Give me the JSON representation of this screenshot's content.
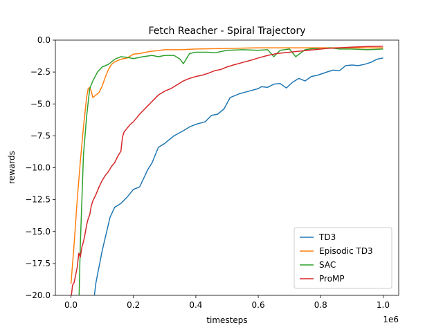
{
  "chart_data": {
    "type": "line",
    "title": "Fetch Reacher - Spiral Trajectory",
    "xlabel": "timesteps",
    "ylabel": "rewards",
    "x_offset_label": "1e6",
    "xlim": [
      -0.05,
      1.05
    ],
    "ylim": [
      -20.0,
      0.0
    ],
    "xticks": [
      0.0,
      0.2,
      0.4,
      0.6,
      0.8,
      1.0
    ],
    "xtick_labels": [
      "0.0",
      "0.2",
      "0.4",
      "0.6",
      "0.8",
      "1.0"
    ],
    "yticks": [
      0.0,
      -2.5,
      -5.0,
      -7.5,
      -10.0,
      -12.5,
      -15.0,
      -17.5,
      -20.0
    ],
    "ytick_labels": [
      "0.0",
      "−2.5",
      "−5.0",
      "−7.5",
      "−10.0",
      "−12.5",
      "−15.0",
      "−17.5",
      "−20.0"
    ],
    "grid": false,
    "legend_position": "lower-right",
    "series": [
      {
        "name": "TD3",
        "color": "#1f77b4",
        "points": [
          [
            0.07,
            -21.0
          ],
          [
            0.08,
            -19.0
          ],
          [
            0.1,
            -16.5
          ],
          [
            0.125,
            -13.9
          ],
          [
            0.14,
            -13.1
          ],
          [
            0.16,
            -12.8
          ],
          [
            0.18,
            -12.3
          ],
          [
            0.2,
            -11.7
          ],
          [
            0.22,
            -11.5
          ],
          [
            0.245,
            -10.2
          ],
          [
            0.26,
            -9.6
          ],
          [
            0.28,
            -8.4
          ],
          [
            0.3,
            -8.1
          ],
          [
            0.33,
            -7.5
          ],
          [
            0.36,
            -7.1
          ],
          [
            0.38,
            -6.8
          ],
          [
            0.4,
            -6.6
          ],
          [
            0.43,
            -6.4
          ],
          [
            0.45,
            -5.9
          ],
          [
            0.47,
            -5.8
          ],
          [
            0.49,
            -5.4
          ],
          [
            0.51,
            -4.5
          ],
          [
            0.54,
            -4.2
          ],
          [
            0.57,
            -4.0
          ],
          [
            0.6,
            -3.8
          ],
          [
            0.61,
            -3.65
          ],
          [
            0.63,
            -3.7
          ],
          [
            0.65,
            -3.45
          ],
          [
            0.67,
            -3.4
          ],
          [
            0.69,
            -3.75
          ],
          [
            0.71,
            -3.3
          ],
          [
            0.73,
            -3.0
          ],
          [
            0.75,
            -3.2
          ],
          [
            0.77,
            -2.85
          ],
          [
            0.79,
            -2.75
          ],
          [
            0.82,
            -2.5
          ],
          [
            0.84,
            -2.35
          ],
          [
            0.86,
            -2.4
          ],
          [
            0.88,
            -2.0
          ],
          [
            0.9,
            -1.95
          ],
          [
            0.92,
            -2.0
          ],
          [
            0.94,
            -1.9
          ],
          [
            0.96,
            -1.75
          ],
          [
            0.98,
            -1.5
          ],
          [
            1.0,
            -1.4
          ]
        ]
      },
      {
        "name": "Episodic TD3",
        "color": "#ff7f0e",
        "points": [
          [
            0.0,
            -19.1
          ],
          [
            0.01,
            -16.0
          ],
          [
            0.02,
            -12.5
          ],
          [
            0.03,
            -9.5
          ],
          [
            0.04,
            -6.8
          ],
          [
            0.05,
            -4.5
          ],
          [
            0.055,
            -3.8
          ],
          [
            0.06,
            -3.7
          ],
          [
            0.065,
            -4.0
          ],
          [
            0.07,
            -4.5
          ],
          [
            0.08,
            -4.3
          ],
          [
            0.09,
            -4.1
          ],
          [
            0.1,
            -3.6
          ],
          [
            0.11,
            -2.9
          ],
          [
            0.12,
            -2.3
          ],
          [
            0.13,
            -1.9
          ],
          [
            0.14,
            -1.7
          ],
          [
            0.16,
            -1.5
          ],
          [
            0.18,
            -1.4
          ],
          [
            0.2,
            -1.1
          ],
          [
            0.22,
            -1.05
          ],
          [
            0.25,
            -0.9
          ],
          [
            0.3,
            -0.75
          ],
          [
            0.35,
            -0.75
          ],
          [
            0.4,
            -0.7
          ],
          [
            0.5,
            -0.65
          ],
          [
            0.6,
            -0.6
          ],
          [
            0.7,
            -0.6
          ],
          [
            0.8,
            -0.6
          ],
          [
            0.9,
            -0.6
          ],
          [
            1.0,
            -0.6
          ]
        ]
      },
      {
        "name": "SAC",
        "color": "#2ca02c",
        "points": [
          [
            0.025,
            -21.0
          ],
          [
            0.03,
            -16.0
          ],
          [
            0.04,
            -9.0
          ],
          [
            0.05,
            -6.0
          ],
          [
            0.06,
            -3.8
          ],
          [
            0.07,
            -3.2
          ],
          [
            0.085,
            -2.5
          ],
          [
            0.1,
            -2.1
          ],
          [
            0.12,
            -1.9
          ],
          [
            0.14,
            -1.5
          ],
          [
            0.16,
            -1.3
          ],
          [
            0.18,
            -1.35
          ],
          [
            0.2,
            -1.45
          ],
          [
            0.23,
            -1.3
          ],
          [
            0.26,
            -1.2
          ],
          [
            0.28,
            -1.3
          ],
          [
            0.3,
            -1.2
          ],
          [
            0.33,
            -1.2
          ],
          [
            0.35,
            -1.5
          ],
          [
            0.36,
            -1.85
          ],
          [
            0.38,
            -1.05
          ],
          [
            0.4,
            -0.95
          ],
          [
            0.44,
            -0.95
          ],
          [
            0.46,
            -1.0
          ],
          [
            0.5,
            -0.8
          ],
          [
            0.55,
            -0.75
          ],
          [
            0.6,
            -0.8
          ],
          [
            0.63,
            -0.75
          ],
          [
            0.65,
            -1.3
          ],
          [
            0.67,
            -0.8
          ],
          [
            0.7,
            -0.7
          ],
          [
            0.72,
            -1.3
          ],
          [
            0.75,
            -0.75
          ],
          [
            0.78,
            -0.65
          ],
          [
            0.8,
            -0.7
          ],
          [
            0.83,
            -0.6
          ],
          [
            0.86,
            -0.7
          ],
          [
            0.9,
            -0.7
          ],
          [
            0.95,
            -0.75
          ],
          [
            1.0,
            -0.7
          ]
        ]
      },
      {
        "name": "ProMP",
        "color": "#d62728",
        "points": [
          [
            0.0,
            -20.3
          ],
          [
            0.005,
            -19.2
          ],
          [
            0.01,
            -19.0
          ],
          [
            0.015,
            -18.4
          ],
          [
            0.02,
            -17.8
          ],
          [
            0.025,
            -16.7
          ],
          [
            0.03,
            -17.0
          ],
          [
            0.035,
            -16.2
          ],
          [
            0.04,
            -15.8
          ],
          [
            0.045,
            -15.2
          ],
          [
            0.05,
            -14.5
          ],
          [
            0.055,
            -14.0
          ],
          [
            0.06,
            -13.7
          ],
          [
            0.065,
            -13.0
          ],
          [
            0.07,
            -12.6
          ],
          [
            0.08,
            -12.1
          ],
          [
            0.09,
            -11.5
          ],
          [
            0.1,
            -11.0
          ],
          [
            0.11,
            -10.6
          ],
          [
            0.12,
            -10.3
          ],
          [
            0.13,
            -9.9
          ],
          [
            0.14,
            -9.6
          ],
          [
            0.15,
            -9.1
          ],
          [
            0.16,
            -8.7
          ],
          [
            0.165,
            -7.6
          ],
          [
            0.17,
            -7.2
          ],
          [
            0.18,
            -6.9
          ],
          [
            0.19,
            -6.6
          ],
          [
            0.2,
            -6.4
          ],
          [
            0.21,
            -6.1
          ],
          [
            0.22,
            -5.8
          ],
          [
            0.24,
            -5.3
          ],
          [
            0.26,
            -4.8
          ],
          [
            0.28,
            -4.3
          ],
          [
            0.3,
            -4.0
          ],
          [
            0.32,
            -3.8
          ],
          [
            0.34,
            -3.5
          ],
          [
            0.36,
            -3.2
          ],
          [
            0.38,
            -3.0
          ],
          [
            0.4,
            -2.85
          ],
          [
            0.42,
            -2.75
          ],
          [
            0.44,
            -2.6
          ],
          [
            0.46,
            -2.4
          ],
          [
            0.48,
            -2.3
          ],
          [
            0.5,
            -2.1
          ],
          [
            0.52,
            -1.95
          ],
          [
            0.55,
            -1.75
          ],
          [
            0.58,
            -1.55
          ],
          [
            0.6,
            -1.4
          ],
          [
            0.63,
            -1.2
          ],
          [
            0.66,
            -1.05
          ],
          [
            0.7,
            -0.95
          ],
          [
            0.74,
            -0.85
          ],
          [
            0.78,
            -0.75
          ],
          [
            0.82,
            -0.65
          ],
          [
            0.86,
            -0.6
          ],
          [
            0.9,
            -0.55
          ],
          [
            0.95,
            -0.5
          ],
          [
            1.0,
            -0.48
          ]
        ]
      }
    ]
  }
}
